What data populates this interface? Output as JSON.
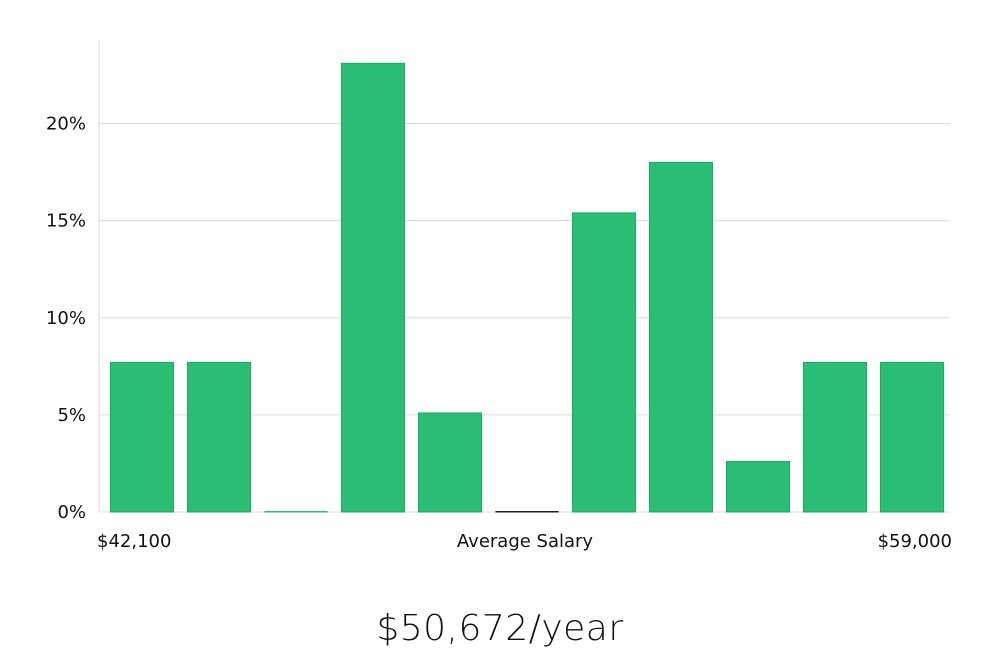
{
  "chart_data": {
    "type": "bar",
    "xlabel": "Average Salary",
    "x_min_label": "$42,100",
    "x_max_label": "$59,000",
    "y_ticks": [
      "0%",
      "5%",
      "10%",
      "15%",
      "20%"
    ],
    "y_tick_values": [
      0,
      5,
      10,
      15,
      20
    ],
    "ylim": [
      0,
      24.3
    ],
    "grid": true,
    "bar_color": "#2abd74",
    "zero_bar_color": "#1a1a2e",
    "values": [
      7.7,
      7.7,
      0,
      23.1,
      5.1,
      0,
      15.4,
      18.0,
      2.6,
      7.7,
      7.7
    ]
  },
  "summary": {
    "average": "$50,672/year"
  }
}
